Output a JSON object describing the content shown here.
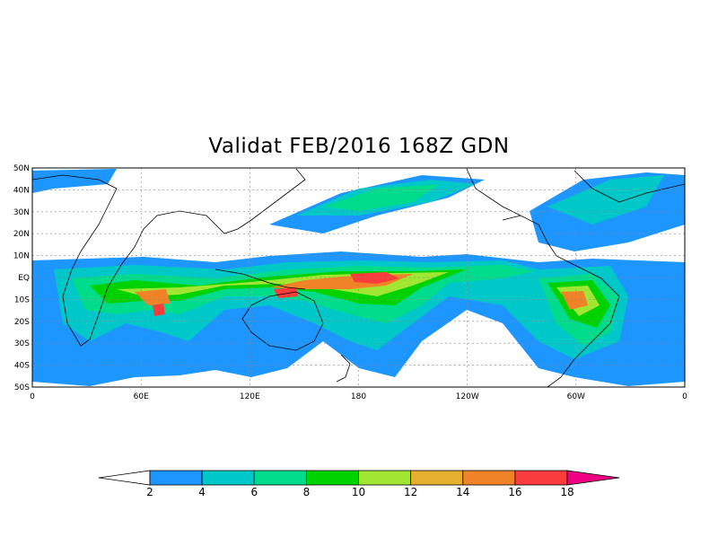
{
  "title": "Validat FEB/2016 168Z GDN",
  "map": {
    "lat_labels": [
      "50N",
      "40N",
      "30N",
      "20N",
      "10N",
      "EQ",
      "10S",
      "20S",
      "30S",
      "40S",
      "50S"
    ],
    "lon_labels": [
      "0",
      "60E",
      "120E",
      "180",
      "120W",
      "60W",
      "0"
    ],
    "lat_range": [
      -50,
      50
    ],
    "lon_range": [
      0,
      360
    ],
    "grid": "dotted",
    "coastlines": true
  },
  "colorbar": {
    "labels": [
      "2",
      "4",
      "6",
      "8",
      "10",
      "12",
      "14",
      "16",
      "18"
    ],
    "colors": [
      "#ffffff",
      "#1e96ff",
      "#00c8c8",
      "#00dc8c",
      "#00d200",
      "#a0e632",
      "#e6af2d",
      "#f08228",
      "#fa3c3c",
      "#f00082"
    ]
  }
}
